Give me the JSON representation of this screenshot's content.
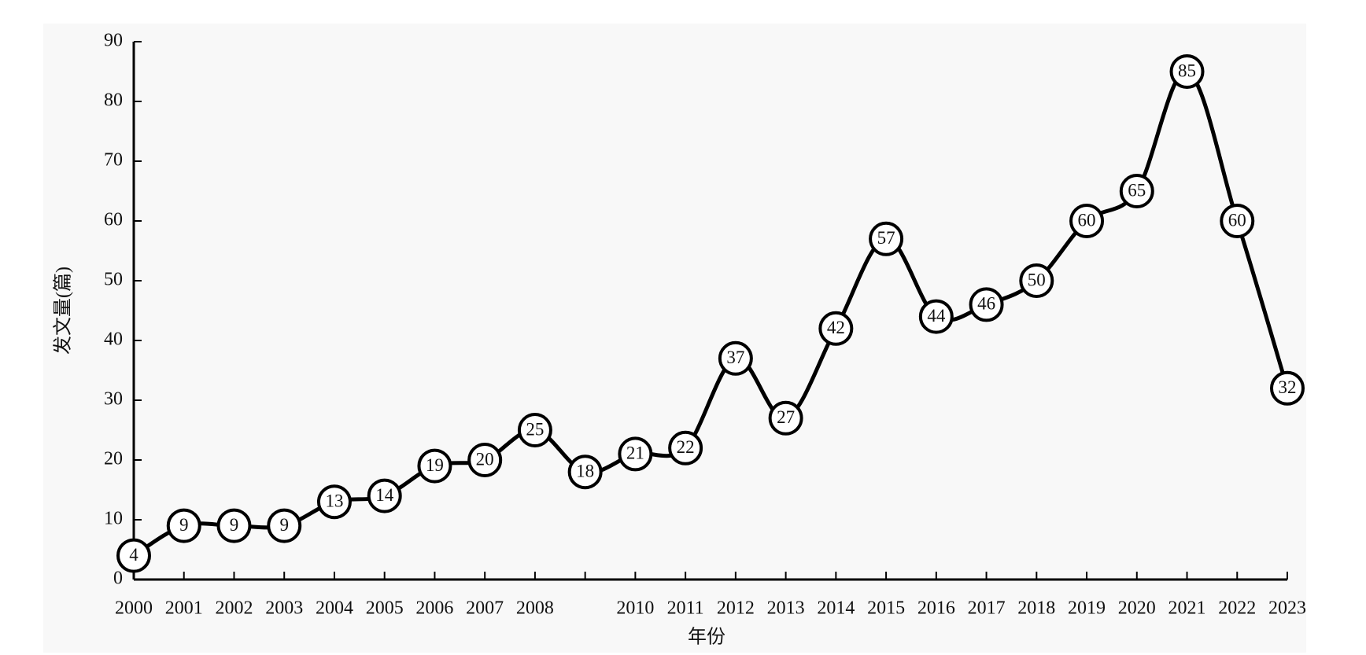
{
  "chart_data": {
    "type": "line",
    "x_label": "年份",
    "y_label": "发文量(篇)",
    "categories": [
      "2000",
      "2001",
      "2002",
      "2003",
      "2004",
      "2005",
      "2006",
      "2007",
      "2008",
      null,
      "2010",
      "2011",
      "2012",
      "2013",
      "2014",
      "2015",
      "2016",
      "2017",
      "2018",
      "2019",
      "2020",
      "2021",
      "2022",
      "2023"
    ],
    "series": [
      {
        "color": "#000000",
        "values": [
          4,
          9,
          9,
          9,
          13,
          14,
          19,
          20,
          25,
          18,
          21,
          22,
          37,
          27,
          42,
          57,
          44,
          46,
          50,
          60,
          65,
          85,
          60,
          32
        ]
      }
    ],
    "ylim": [
      0,
      90
    ],
    "yticks": [
      0,
      10,
      20,
      30,
      40,
      50,
      60,
      70,
      80,
      90
    ]
  }
}
